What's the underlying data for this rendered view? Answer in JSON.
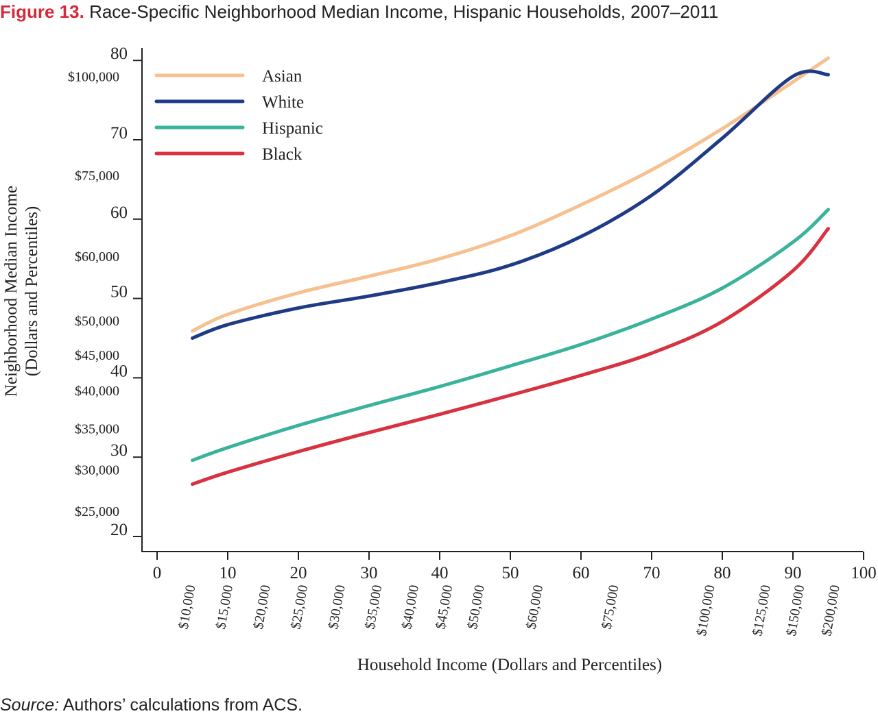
{
  "figure_label": "Figure 13.",
  "figure_title": "Race-Specific Neighborhood Median Income, Hispanic Households, 2007–2011",
  "source_label": "Source:",
  "source_text": "Authors’ calculations from ACS.",
  "chart_data": {
    "type": "line",
    "xlabel": "Household Income (Dollars and Percentiles)",
    "ylabel_line1": "Neighborhood Median Income",
    "ylabel_line2": "(Dollars and Percentiles)",
    "xlim": [
      0,
      100
    ],
    "ylim": [
      20,
      80
    ],
    "x_ticks": [
      "0",
      "10",
      "20",
      "30",
      "40",
      "50",
      "60",
      "70",
      "80",
      "90",
      "100"
    ],
    "y_ticks": [
      "20",
      "30",
      "40",
      "50",
      "60",
      "70",
      "80"
    ],
    "x_dollar_labels": [
      {
        "label": "$10,000",
        "x": 5
      },
      {
        "label": "$15,000",
        "x": 10.3
      },
      {
        "label": "$20,000",
        "x": 15.6
      },
      {
        "label": "$25,000",
        "x": 20.9
      },
      {
        "label": "$30,000",
        "x": 26.2
      },
      {
        "label": "$35,000",
        "x": 31.4
      },
      {
        "label": "$40,000",
        "x": 36.6
      },
      {
        "label": "$45,000",
        "x": 41.4
      },
      {
        "label": "$50,000",
        "x": 45.9
      },
      {
        "label": "$60,000",
        "x": 54.2
      },
      {
        "label": "$75,000",
        "x": 64.9
      },
      {
        "label": "$100,000",
        "x": 78.5
      },
      {
        "label": "$125,000",
        "x": 86.4
      },
      {
        "label": "$150,000",
        "x": 91.2
      },
      {
        "label": "$200,000",
        "x": 96.2
      }
    ],
    "y_dollar_labels": [
      {
        "label": "$100,000",
        "y": 78
      },
      {
        "label": "$75,000",
        "y": 65.5
      },
      {
        "label": "$60,000",
        "y": 55.3
      },
      {
        "label": "$50,000",
        "y": 47.2
      },
      {
        "label": "$45,000",
        "y": 42.9
      },
      {
        "label": "$40,000",
        "y": 38.4
      },
      {
        "label": "$35,000",
        "y": 33.6
      },
      {
        "label": "$30,000",
        "y": 28.4
      },
      {
        "label": "$25,000",
        "y": 23.2
      }
    ],
    "legend_position": "top-left",
    "series": [
      {
        "name": "Asian",
        "color": "#f6c08f",
        "x": [
          5,
          10,
          20,
          30,
          40,
          50,
          60,
          70,
          80,
          90,
          95
        ],
        "y": [
          45.9,
          48,
          50.7,
          52.8,
          55,
          57.9,
          61.8,
          66.2,
          71.4,
          77.3,
          80.3
        ]
      },
      {
        "name": "White",
        "color": "#1f3b86",
        "x": [
          5,
          10,
          20,
          30,
          40,
          50,
          60,
          70,
          80,
          90,
          95
        ],
        "y": [
          45,
          46.7,
          48.8,
          50.3,
          52,
          54.2,
          57.8,
          63,
          70.2,
          78,
          78.2
        ]
      },
      {
        "name": "Hispanic",
        "color": "#3ab39c",
        "x": [
          5,
          10,
          20,
          30,
          40,
          50,
          60,
          70,
          80,
          90,
          95
        ],
        "y": [
          29.6,
          31.2,
          34,
          36.5,
          38.9,
          41.5,
          44.2,
          47.4,
          51.3,
          57.1,
          61.2
        ]
      },
      {
        "name": "Black",
        "color": "#d8313f",
        "x": [
          5,
          10,
          20,
          30,
          40,
          50,
          60,
          70,
          80,
          90,
          95
        ],
        "y": [
          26.6,
          28.1,
          30.7,
          33.1,
          35.4,
          37.8,
          40.3,
          43.1,
          47.1,
          53.5,
          58.8
        ]
      }
    ]
  }
}
